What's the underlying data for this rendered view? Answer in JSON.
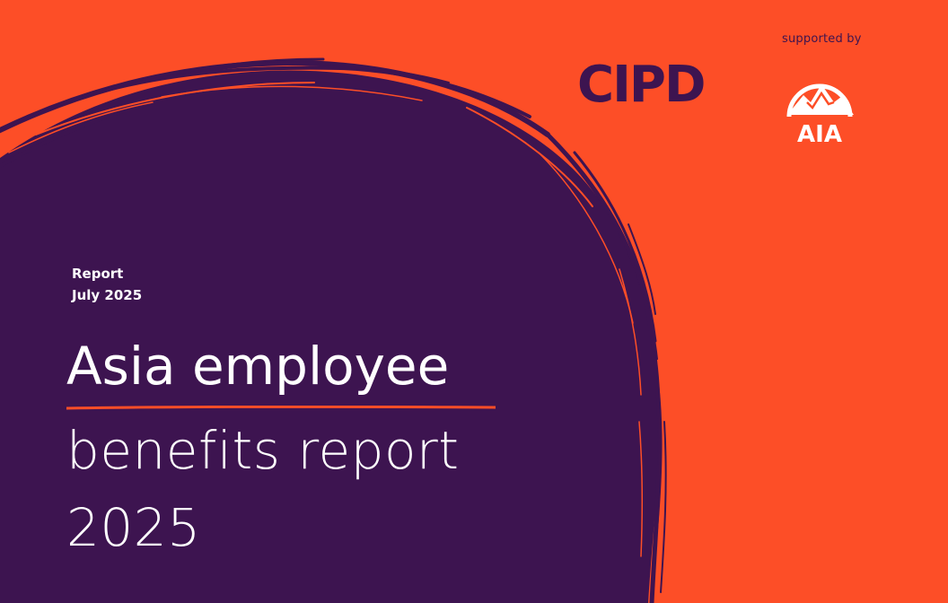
{
  "cover": {
    "supported_by": "supported by",
    "cipd_logo_text": "CIPD",
    "aia_logo_text": "AIA",
    "report_type": "Report",
    "report_date": "July 2025",
    "title_line1": "Asia employee",
    "title_line2": "benefits report",
    "title_line3": "2025"
  },
  "colors": {
    "background": "#fd4e27",
    "purple": "#3d1450",
    "white": "#ffffff"
  },
  "icons": [
    "aia-logo-icon",
    "brush-circle-graphic"
  ]
}
